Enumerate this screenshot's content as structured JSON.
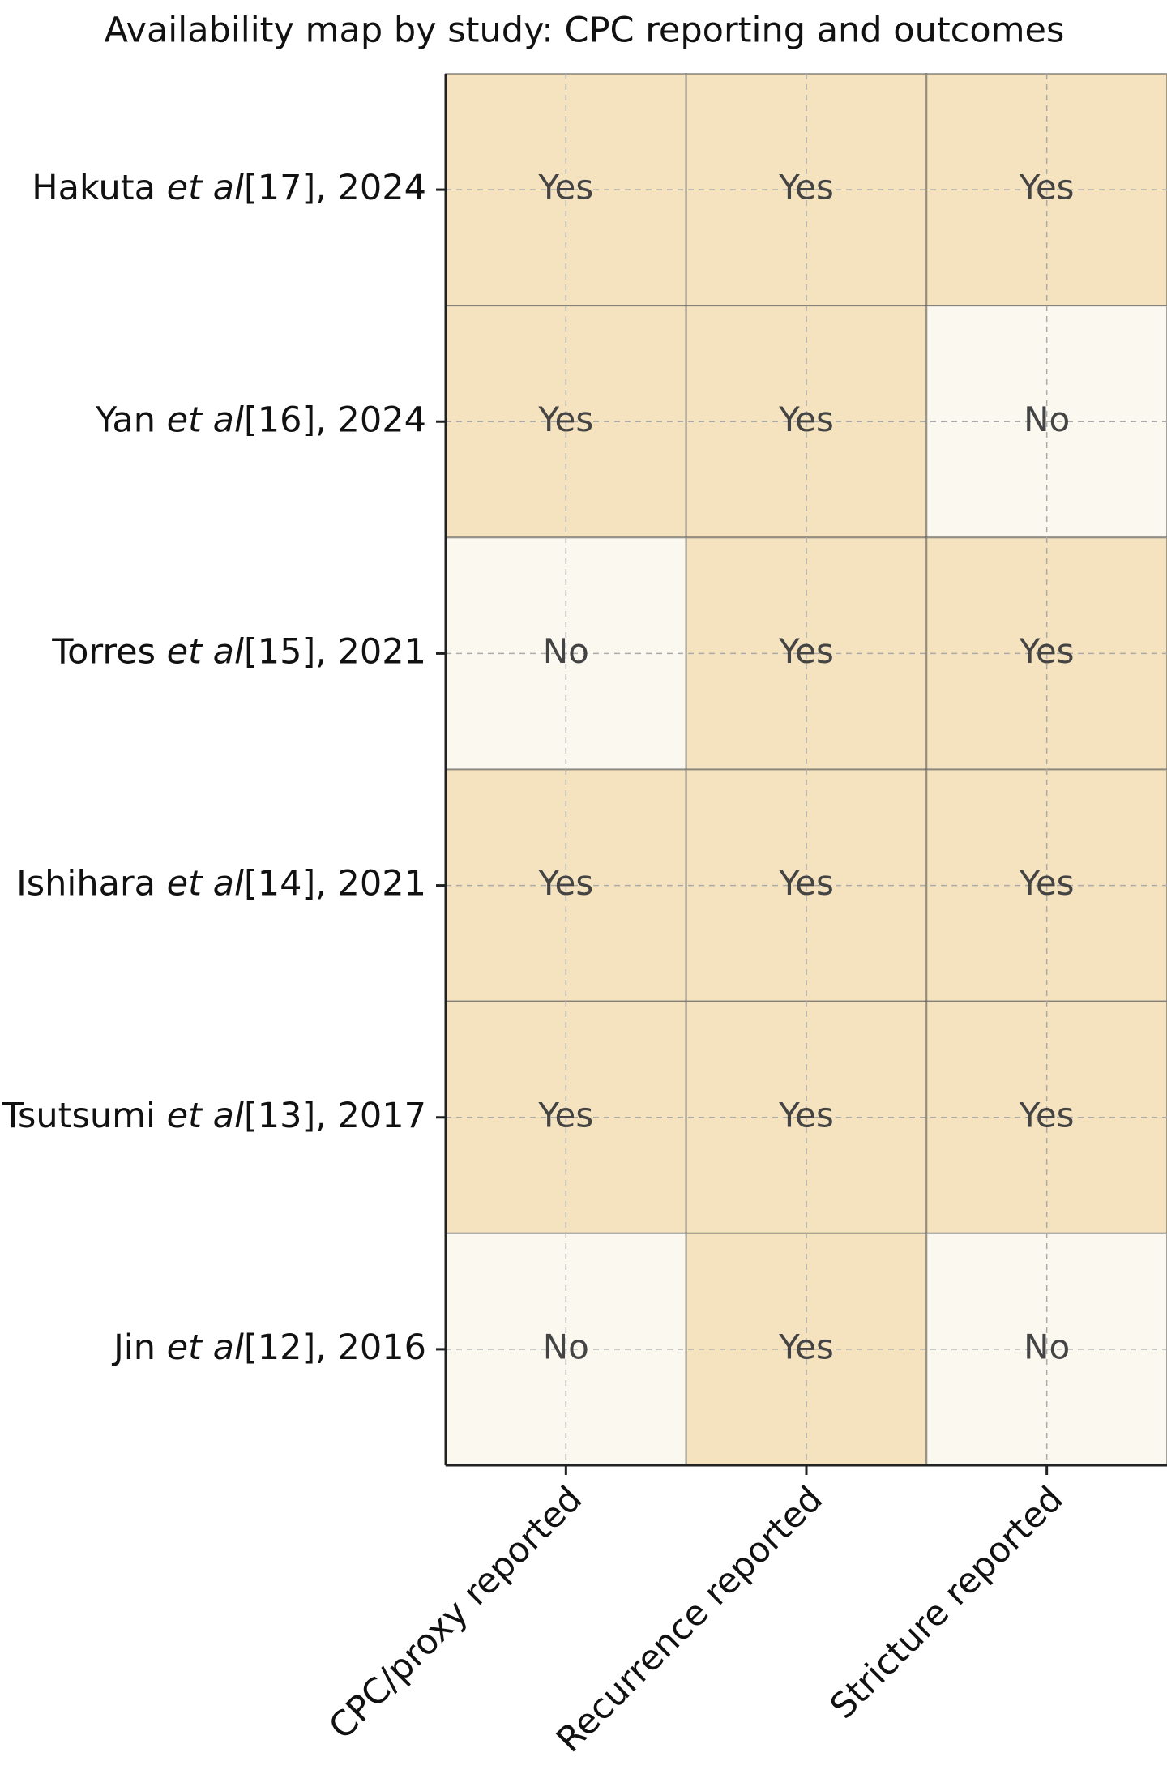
{
  "chart_data": {
    "type": "heatmap",
    "title": "Availability map by study: CPC reporting and outcomes",
    "rows": [
      [
        "Hakuta ",
        "et al",
        "[17], 2024"
      ],
      [
        "Yan ",
        "et al",
        "[16], 2024"
      ],
      [
        "Torres ",
        "et al",
        "[15], 2021"
      ],
      [
        "Ishihara ",
        "et al",
        "[14], 2021"
      ],
      [
        "Tsutsumi ",
        "et al",
        "[13], 2017"
      ],
      [
        "Jin ",
        "et al",
        "[12], 2016"
      ]
    ],
    "columns": [
      "CPC/proxy reported",
      "Recurrence reported",
      "Stricture reported"
    ],
    "cells": [
      [
        "Yes",
        "Yes",
        "Yes"
      ],
      [
        "Yes",
        "Yes",
        "No"
      ],
      [
        "No",
        "Yes",
        "Yes"
      ],
      [
        "Yes",
        "Yes",
        "Yes"
      ],
      [
        "Yes",
        "Yes",
        "Yes"
      ],
      [
        "No",
        "Yes",
        "No"
      ]
    ],
    "colors": {
      "Yes": "#f5e3bf",
      "No": "#fbf8f0"
    },
    "grid": true
  }
}
